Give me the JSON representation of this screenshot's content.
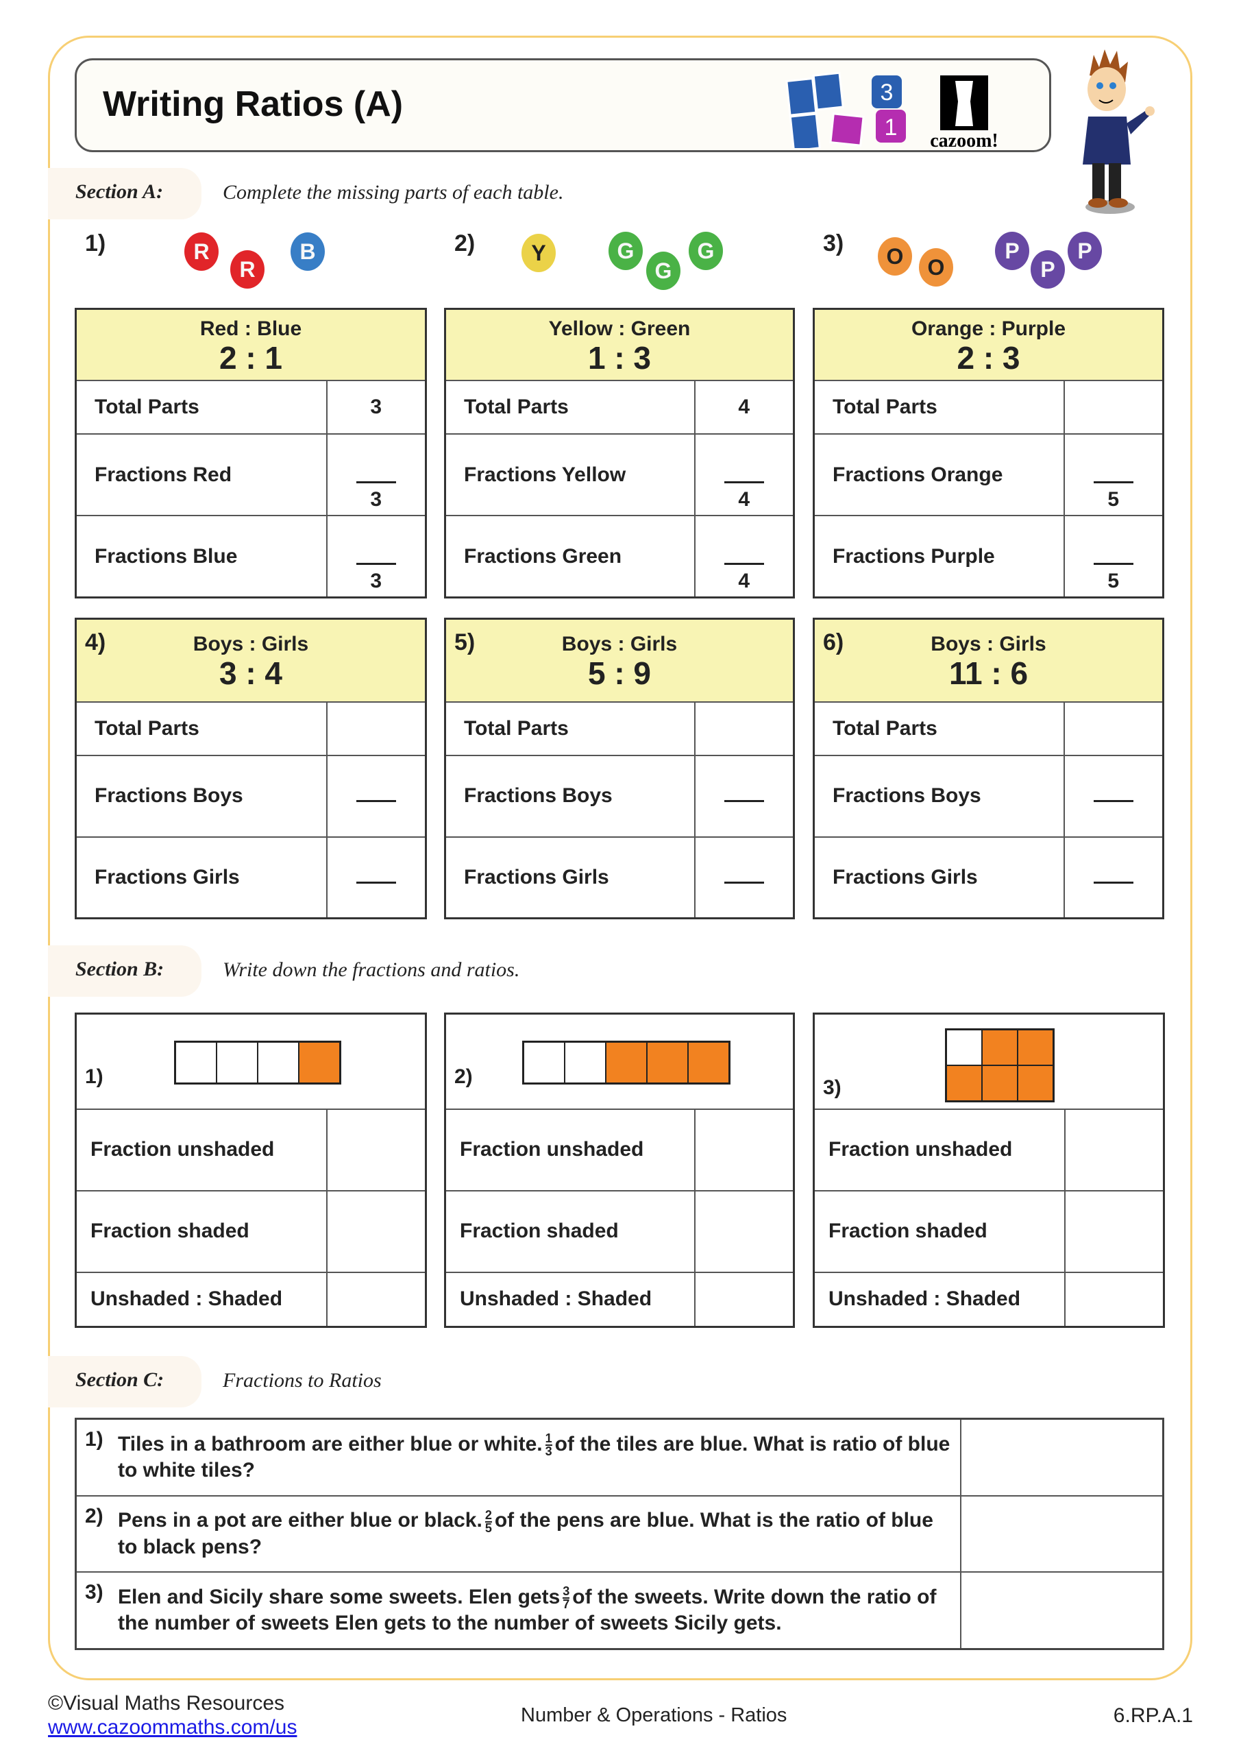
{
  "header": {
    "title": "Writing Ratios (A)",
    "logo_text": "cazoom!",
    "logo_tiles": [
      "3",
      "1"
    ]
  },
  "section_a": {
    "label": "Section A:",
    "instruction": "Complete the missing parts of each table.",
    "groups": [
      {
        "number": "1)",
        "balls": [
          {
            "letter": "R",
            "color": "#e8262a"
          },
          {
            "letter": "R",
            "color": "#e8262a"
          },
          {
            "letter": "B",
            "color": "#3a82cc"
          }
        ]
      },
      {
        "number": "2)",
        "balls": [
          {
            "letter": "Y",
            "color": "#f2d94a"
          },
          {
            "letter": "G",
            "color": "#4cb848"
          },
          {
            "letter": "G",
            "color": "#4cb848"
          },
          {
            "letter": "G",
            "color": "#4cb848"
          }
        ]
      },
      {
        "number": "3)",
        "balls": [
          {
            "letter": "O",
            "color": "#f6973c"
          },
          {
            "letter": "O",
            "color": "#f6973c"
          },
          {
            "letter": "P",
            "color": "#6a4aa8"
          },
          {
            "letter": "P",
            "color": "#6a4aa8"
          },
          {
            "letter": "P",
            "color": "#6a4aa8"
          }
        ]
      }
    ],
    "tables": [
      {
        "number": "",
        "title": "Red : Blue",
        "ratio": "2 : 1",
        "rows": [
          {
            "label": "Total Parts",
            "value": "3"
          },
          {
            "label": "Fractions Red",
            "numerator": "",
            "denominator": "3"
          },
          {
            "label": "Fractions Blue",
            "numerator": "",
            "denominator": "3"
          }
        ]
      },
      {
        "number": "",
        "title": "Yellow : Green",
        "ratio": "1 : 3",
        "rows": [
          {
            "label": "Total Parts",
            "value": "4"
          },
          {
            "label": "Fractions Yellow",
            "numerator": "",
            "denominator": "4"
          },
          {
            "label": "Fractions Green",
            "numerator": "",
            "denominator": "4"
          }
        ]
      },
      {
        "number": "",
        "title": "Orange : Purple",
        "ratio": "2 : 3",
        "rows": [
          {
            "label": "Total Parts",
            "value": ""
          },
          {
            "label": "Fractions Orange",
            "numerator": "",
            "denominator": "5"
          },
          {
            "label": "Fractions Purple",
            "numerator": "",
            "denominator": "5"
          }
        ]
      },
      {
        "number": "4)",
        "title": "Boys : Girls",
        "ratio": "3 : 4",
        "rows": [
          {
            "label": "Total Parts",
            "value": ""
          },
          {
            "label": "Fractions Boys",
            "numerator": "",
            "denominator": ""
          },
          {
            "label": "Fractions Girls",
            "numerator": "",
            "denominator": ""
          }
        ]
      },
      {
        "number": "5)",
        "title": "Boys : Girls",
        "ratio": "5 : 9",
        "rows": [
          {
            "label": "Total Parts",
            "value": ""
          },
          {
            "label": "Fractions Boys",
            "numerator": "",
            "denominator": ""
          },
          {
            "label": "Fractions Girls",
            "numerator": "",
            "denominator": ""
          }
        ]
      },
      {
        "number": "6)",
        "title": "Boys : Girls",
        "ratio": "11 : 6",
        "rows": [
          {
            "label": "Total Parts",
            "value": ""
          },
          {
            "label": "Fractions Boys",
            "numerator": "",
            "denominator": ""
          },
          {
            "label": "Fractions Girls",
            "numerator": "",
            "denominator": ""
          }
        ]
      }
    ]
  },
  "section_b": {
    "label": "Section B:",
    "instruction": "Write down the fractions and ratios.",
    "tables": [
      {
        "number": "1)",
        "grid": {
          "rows": 1,
          "cols": 4,
          "shaded": [
            false,
            false,
            false,
            true
          ]
        },
        "rows": [
          "Fraction unshaded",
          "Fraction shaded",
          "Unshaded : Shaded"
        ]
      },
      {
        "number": "2)",
        "grid": {
          "rows": 1,
          "cols": 5,
          "shaded": [
            false,
            false,
            true,
            true,
            true
          ]
        },
        "rows": [
          "Fraction unshaded",
          "Fraction shaded",
          "Unshaded : Shaded"
        ]
      },
      {
        "number": "3)",
        "grid": {
          "rows": 2,
          "cols": 3,
          "shaded": [
            false,
            true,
            true,
            true,
            true,
            true
          ]
        },
        "rows": [
          "Fraction unshaded",
          "Fraction shaded",
          "Unshaded : Shaded"
        ]
      }
    ]
  },
  "section_c": {
    "label": "Section C:",
    "instruction": "Fractions to Ratios",
    "questions": [
      {
        "number": "1)",
        "before": "Tiles in a bathroom are either blue or white.",
        "num": "1",
        "den": "3",
        "after": "of the tiles are blue. What is ratio of blue to white tiles?"
      },
      {
        "number": "2)",
        "before": "Pens in a pot are either blue or black.",
        "num": "2",
        "den": "5",
        "after": "of the pens are blue. What is the ratio of blue to black pens?"
      },
      {
        "number": "3)",
        "before": "Elen and Sicily share some sweets. Elen gets",
        "num": "3",
        "den": "7",
        "after": "of the sweets. Write down the ratio of the number of sweets Elen gets to the number of sweets Sicily gets."
      }
    ]
  },
  "footer": {
    "copyright": "©Visual Maths Resources",
    "link": "www.cazoommaths.com/us",
    "topic": "Number & Operations - Ratios",
    "standard": "6.RP.A.1"
  }
}
